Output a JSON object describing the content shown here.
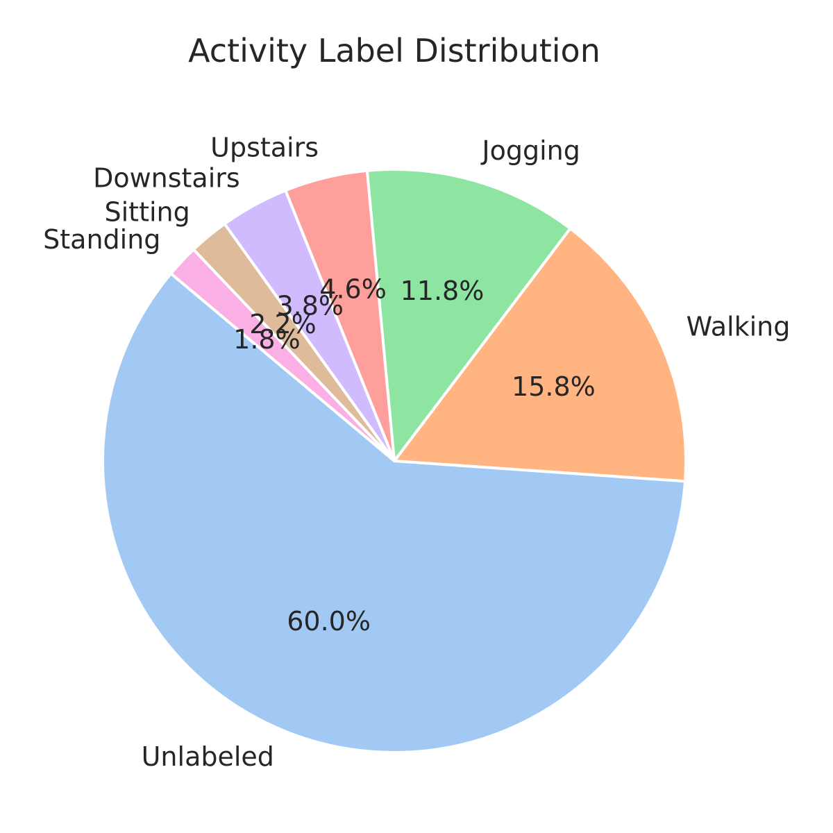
{
  "chart_data": {
    "type": "pie",
    "title": "Activity Label Distribution",
    "start_angle_deg": 140,
    "direction": "counterclockwise",
    "slices": [
      {
        "label": "Unlabeled",
        "value": 60.0,
        "pct_text": "60.0%",
        "color": "#a1c9f4"
      },
      {
        "label": "Walking",
        "value": 15.8,
        "pct_text": "15.8%",
        "color": "#ffb482"
      },
      {
        "label": "Jogging",
        "value": 11.8,
        "pct_text": "11.8%",
        "color": "#8de5a1"
      },
      {
        "label": "Upstairs",
        "value": 4.6,
        "pct_text": "4.6%",
        "color": "#ff9f9b"
      },
      {
        "label": "Downstairs",
        "value": 3.8,
        "pct_text": "3.8%",
        "color": "#d0bbff"
      },
      {
        "label": "Sitting",
        "value": 2.2,
        "pct_text": "2.2%",
        "color": "#debb9b"
      },
      {
        "label": "Standing",
        "value": 1.8,
        "pct_text": "1.8%",
        "color": "#fab0e4"
      }
    ],
    "legend": "none"
  }
}
